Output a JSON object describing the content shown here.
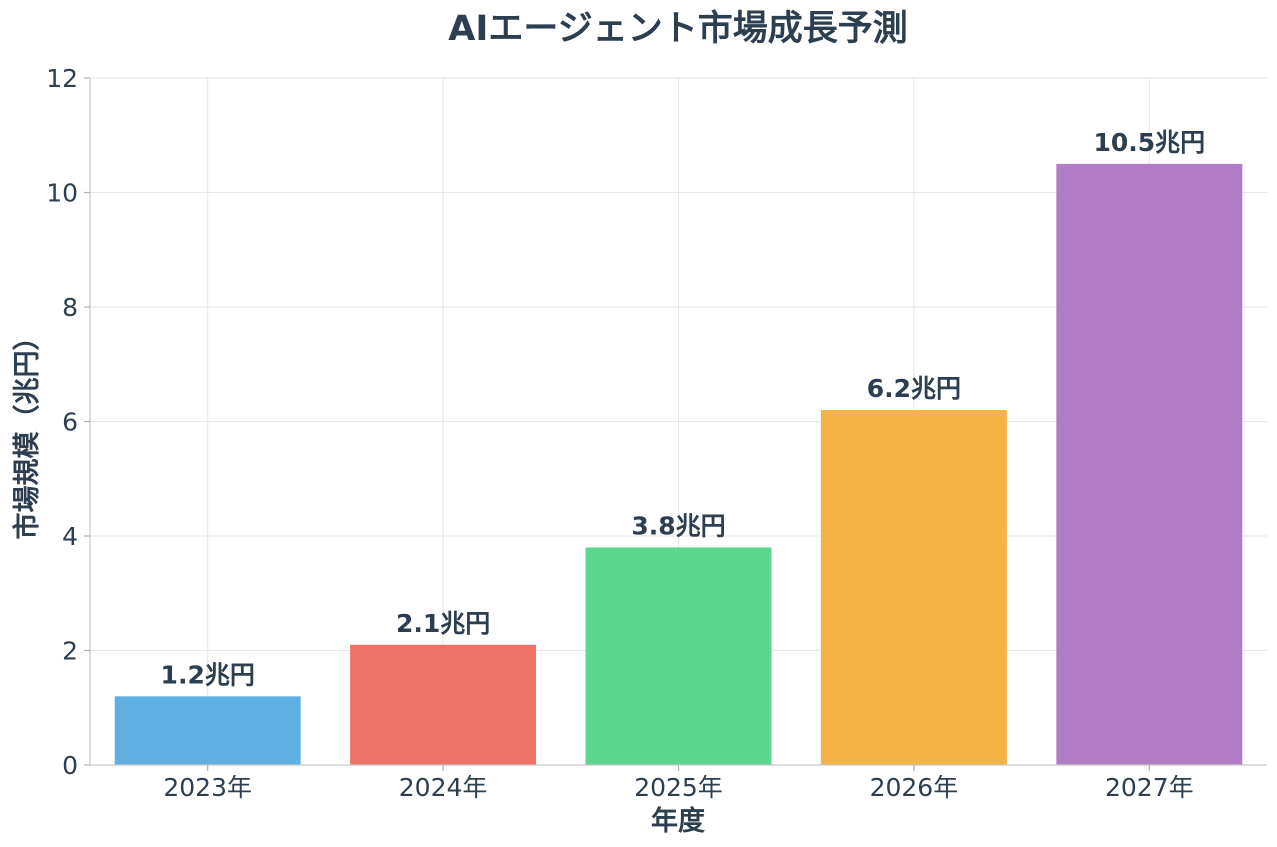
{
  "chart_data": {
    "type": "bar",
    "title": "AIエージェント市場成長予測",
    "xlabel": "年度",
    "ylabel": "市場規模（兆円）",
    "categories": [
      "2023年",
      "2024年",
      "2025年",
      "2026年",
      "2027年"
    ],
    "values": [
      1.2,
      2.1,
      3.8,
      6.2,
      10.5
    ],
    "value_labels": [
      "1.2兆円",
      "2.1兆円",
      "3.8兆円",
      "6.2兆円",
      "10.5兆円"
    ],
    "colors": [
      "#5dade2",
      "#ec7063",
      "#58d68d",
      "#f5b041",
      "#af7ac5"
    ],
    "ylim": [
      0,
      12
    ],
    "yticks": [
      0,
      2,
      4,
      6,
      8,
      10,
      12
    ],
    "grid": true,
    "legend": "none"
  }
}
